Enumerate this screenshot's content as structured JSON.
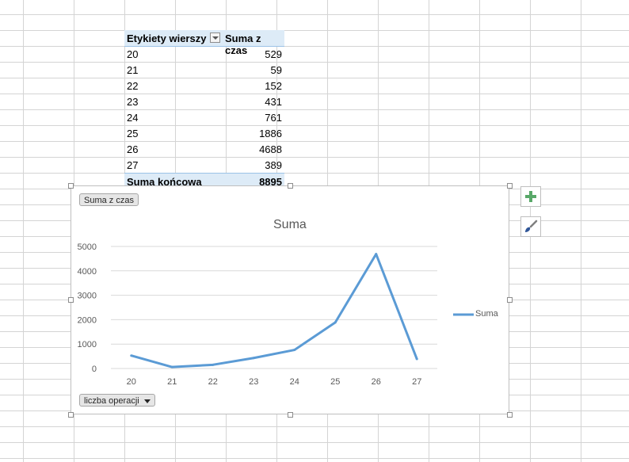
{
  "pivot": {
    "header": {
      "row_label": "Etykiety wierszy",
      "value_label": "Suma z czas"
    },
    "rows": [
      {
        "label": "20",
        "value": "529"
      },
      {
        "label": "21",
        "value": "59"
      },
      {
        "label": "22",
        "value": "152"
      },
      {
        "label": "23",
        "value": "431"
      },
      {
        "label": "24",
        "value": "761"
      },
      {
        "label": "25",
        "value": "1886"
      },
      {
        "label": "26",
        "value": "4688"
      },
      {
        "label": "27",
        "value": "389"
      }
    ],
    "total": {
      "label": "Suma końcowa",
      "value": "8895"
    },
    "filter_icon": "dropdown-filter-icon"
  },
  "chart": {
    "value_field_button": "Suma z czas",
    "axis_field_button": "liczba operacji",
    "plus_icon": "plus-icon",
    "brush_icon": "paintbrush-icon",
    "colors": {
      "series": "#5b9bd5",
      "plus": "#59a869",
      "brush": "#2f5597"
    }
  },
  "chart_data": {
    "type": "line",
    "title": "Suma",
    "categories": [
      "20",
      "21",
      "22",
      "23",
      "24",
      "25",
      "26",
      "27"
    ],
    "series": [
      {
        "name": "Suma",
        "values": [
          529,
          59,
          152,
          431,
          761,
          1886,
          4688,
          389
        ]
      }
    ],
    "ylim": [
      0,
      5000
    ],
    "yticks": [
      "0",
      "1000",
      "2000",
      "3000",
      "4000",
      "5000"
    ],
    "grid": true,
    "legend": "right"
  }
}
